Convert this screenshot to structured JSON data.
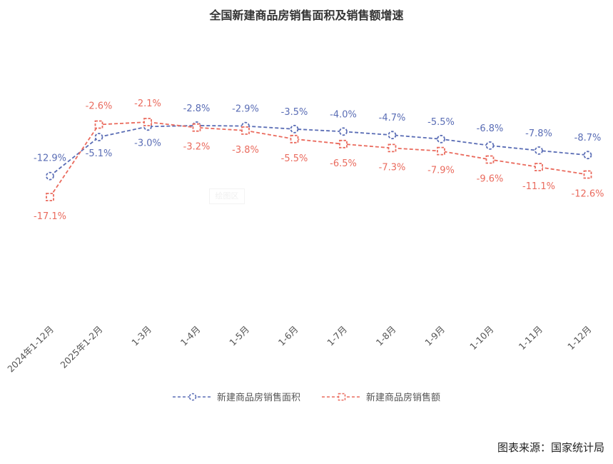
{
  "title": "全国新建商品房销售面积及销售额增速",
  "source": "图表来源：国家统计局",
  "watermark": "绘图区",
  "legend": [
    {
      "label": "新建商品房销售面积",
      "color": "#5a6db5",
      "marker": "circle"
    },
    {
      "label": "新建商品房销售额",
      "color": "#ea6b5e",
      "marker": "square"
    }
  ],
  "chart_data": {
    "type": "line",
    "title": "全国新建商品房销售面积及销售额增速",
    "xlabel": "",
    "ylabel": "",
    "categories": [
      "2024年1-12月",
      "2025年1-2月",
      "1-3月",
      "1-4月",
      "1-5月",
      "1-6月",
      "1-7月",
      "1-8月",
      "1-9月",
      "1-10月",
      "1-11月",
      "1-12月"
    ],
    "series": [
      {
        "name": "新建商品房销售面积",
        "unit": "%",
        "color": "#5a6db5",
        "values": [
          -12.9,
          -5.1,
          -3.0,
          -2.8,
          -2.9,
          -3.5,
          -4.0,
          -4.7,
          -5.5,
          -6.8,
          -7.8,
          -8.7
        ]
      },
      {
        "name": "新建商品房销售额",
        "unit": "%",
        "color": "#ea6b5e",
        "values": [
          -17.1,
          -2.6,
          -2.1,
          -3.2,
          -3.8,
          -5.5,
          -6.5,
          -7.3,
          -7.9,
          -9.6,
          -11.1,
          -12.6
        ]
      }
    ],
    "grid": false,
    "y_axis_visible": false,
    "line_style": "dashed",
    "data_labels": true,
    "legend_position": "bottom"
  }
}
